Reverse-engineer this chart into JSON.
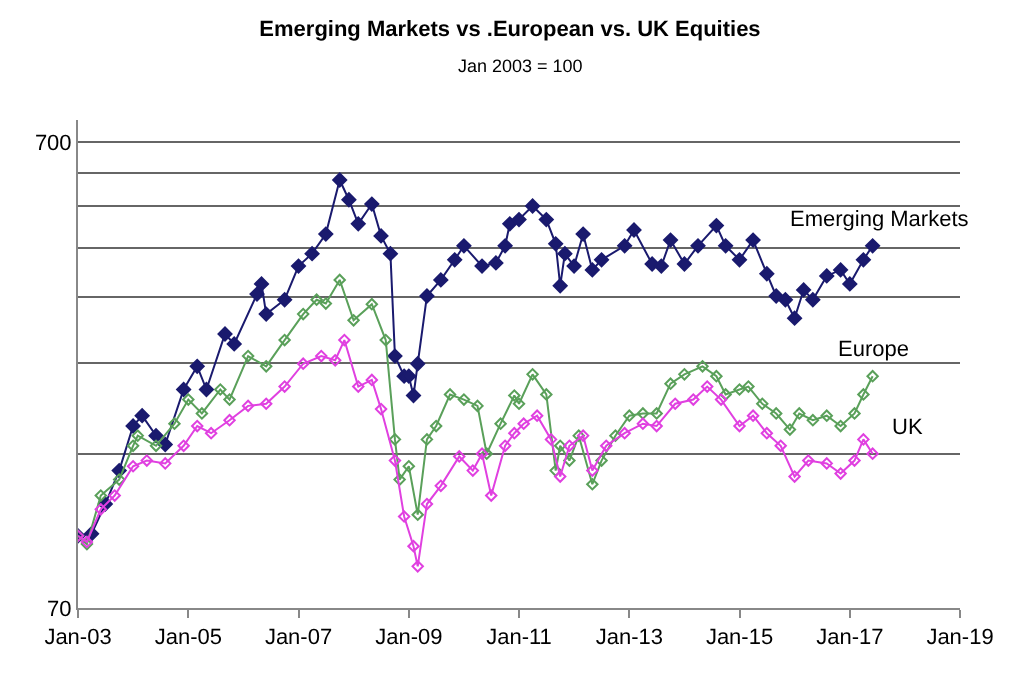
{
  "chart_data": {
    "type": "line",
    "title": "Emerging Markets vs .European vs. UK Equities",
    "subtitle": "Jan 2003 = 100",
    "log": true,
    "grid": "y",
    "legend": false,
    "marker": "diamond",
    "line_style": "solid",
    "xlim": [
      "2003-01-01",
      "2019-01-01"
    ],
    "xticks": [
      {
        "value": "2003-01-01",
        "label": "Jan-03"
      },
      {
        "value": "2005-01-01",
        "label": "Jan-05"
      },
      {
        "value": "2007-01-01",
        "label": "Jan-07"
      },
      {
        "value": "2009-01-01",
        "label": "Jan-09"
      },
      {
        "value": "2011-01-01",
        "label": "Jan-11"
      },
      {
        "value": "2013-01-01",
        "label": "Jan-13"
      },
      {
        "value": "2015-01-01",
        "label": "Jan-15"
      },
      {
        "value": "2017-01-01",
        "label": "Jan-17"
      },
      {
        "value": "2019-01-01",
        "label": "Jan-19"
      }
    ],
    "ylim": [
      70,
      780
    ],
    "yticks": [
      70,
      {
        "value": 150,
        "label": null
      },
      {
        "value": 235,
        "label": null
      },
      {
        "value": 325,
        "label": null
      },
      {
        "value": 415,
        "label": null
      },
      {
        "value": 510,
        "label": null
      },
      {
        "value": 600,
        "label": null
      },
      700
    ],
    "series": [
      {
        "name": "Emerging Markets",
        "color": "#1a1a6e",
        "x": [
          "2003-01",
          "2003-04",
          "2003-07",
          "2003-10",
          "2004-01",
          "2004-03",
          "2004-06",
          "2004-08",
          "2004-12",
          "2005-03",
          "2005-05",
          "2005-09",
          "2005-11",
          "2006-04",
          "2006-05",
          "2006-06",
          "2006-10",
          "2007-01",
          "2007-04",
          "2007-07",
          "2007-10",
          "2007-12",
          "2008-02",
          "2008-05",
          "2008-07",
          "2008-09",
          "2008-10",
          "2008-12",
          "2009-01",
          "2009-02",
          "2009-03",
          "2009-05",
          "2009-08",
          "2009-11",
          "2010-01",
          "2010-05",
          "2010-08",
          "2010-10",
          "2010-11",
          "2011-01",
          "2011-04",
          "2011-07",
          "2011-09",
          "2011-10",
          "2011-11",
          "2012-01",
          "2012-03",
          "2012-05",
          "2012-07",
          "2012-12",
          "2013-02",
          "2013-06",
          "2013-08",
          "2013-10",
          "2014-01",
          "2014-04",
          "2014-08",
          "2014-10",
          "2015-01",
          "2015-04",
          "2015-07",
          "2015-09",
          "2015-11",
          "2016-01",
          "2016-03",
          "2016-05",
          "2016-08",
          "2016-11",
          "2017-01",
          "2017-04",
          "2017-06"
        ],
        "values": [
          100,
          101,
          117,
          138,
          172,
          181,
          164,
          157,
          206,
          231,
          206,
          271,
          258,
          330,
          347,
          299,
          321,
          379,
          403,
          444,
          580,
          526,
          467,
          515,
          440,
          403,
          243,
          220,
          220,
          200,
          234,
          327,
          354,
          391,
          419,
          379,
          385,
          419,
          467,
          477,
          510,
          477,
          423,
          344,
          403,
          379,
          444,
          372,
          391,
          419,
          453,
          383,
          379,
          431,
          383,
          419,
          463,
          419,
          391,
          431,
          365,
          327,
          321,
          293,
          337,
          321,
          361,
          372,
          347,
          391,
          419
        ]
      },
      {
        "name": "Europe",
        "color": "#5aa05a",
        "x": [
          "2003-01",
          "2003-03",
          "2003-06",
          "2003-10",
          "2004-01",
          "2004-02",
          "2004-06",
          "2004-10",
          "2005-01",
          "2005-04",
          "2005-08",
          "2005-10",
          "2006-02",
          "2006-06",
          "2006-10",
          "2007-02",
          "2007-05",
          "2007-07",
          "2007-10",
          "2008-01",
          "2008-05",
          "2008-08",
          "2008-10",
          "2008-11",
          "2009-01",
          "2009-03",
          "2009-05",
          "2009-07",
          "2009-10",
          "2010-01",
          "2010-04",
          "2010-06",
          "2010-09",
          "2010-12",
          "2011-01",
          "2011-04",
          "2011-07",
          "2011-09",
          "2011-10",
          "2011-12",
          "2012-02",
          "2012-05",
          "2012-07",
          "2012-10",
          "2013-01",
          "2013-04",
          "2013-07",
          "2013-10",
          "2014-01",
          "2014-05",
          "2014-08",
          "2014-10",
          "2015-01",
          "2015-03",
          "2015-06",
          "2015-09",
          "2015-12",
          "2016-02",
          "2016-05",
          "2016-08",
          "2016-11",
          "2017-02",
          "2017-04",
          "2017-06"
        ],
        "values": [
          100,
          96,
          122,
          132,
          156,
          164,
          156,
          174,
          196,
          183,
          206,
          196,
          243,
          231,
          263,
          299,
          321,
          315,
          354,
          290,
          314,
          263,
          161,
          132,
          141,
          111,
          161,
          172,
          201,
          196,
          190,
          150,
          174,
          200,
          192,
          222,
          201,
          138,
          156,
          145,
          164,
          129,
          145,
          164,
          181,
          183,
          183,
          212,
          222,
          231,
          220,
          201,
          206,
          209,
          192,
          183,
          169,
          183,
          177,
          181,
          172,
          183,
          201,
          220
        ]
      },
      {
        "name": "UK",
        "color": "#e040e0",
        "x": [
          "2003-01",
          "2003-03",
          "2003-06",
          "2003-09",
          "2004-01",
          "2004-04",
          "2004-08",
          "2004-12",
          "2005-03",
          "2005-06",
          "2005-10",
          "2006-02",
          "2006-06",
          "2006-10",
          "2007-02",
          "2007-06",
          "2007-09",
          "2007-11",
          "2008-02",
          "2008-05",
          "2008-07",
          "2008-10",
          "2008-12",
          "2009-02",
          "2009-03",
          "2009-05",
          "2009-08",
          "2009-12",
          "2010-03",
          "2010-05",
          "2010-07",
          "2010-10",
          "2010-12",
          "2011-02",
          "2011-05",
          "2011-08",
          "2011-10",
          "2011-12",
          "2012-03",
          "2012-05",
          "2012-08",
          "2012-12",
          "2013-04",
          "2013-07",
          "2013-11",
          "2014-03",
          "2014-06",
          "2014-09",
          "2015-01",
          "2015-04",
          "2015-07",
          "2015-10",
          "2016-01",
          "2016-04",
          "2016-08",
          "2016-11",
          "2017-02",
          "2017-04",
          "2017-06"
        ],
        "values": [
          100,
          97,
          114,
          122,
          141,
          145,
          143,
          156,
          172,
          166,
          177,
          190,
          192,
          209,
          234,
          243,
          238,
          263,
          209,
          216,
          187,
          145,
          110,
          95,
          86,
          117,
          128,
          148,
          138,
          150,
          122,
          156,
          166,
          174,
          181,
          161,
          134,
          156,
          164,
          138,
          156,
          166,
          174,
          172,
          192,
          196,
          209,
          196,
          172,
          181,
          166,
          156,
          134,
          145,
          143,
          136,
          145,
          161,
          150
        ]
      }
    ]
  }
}
